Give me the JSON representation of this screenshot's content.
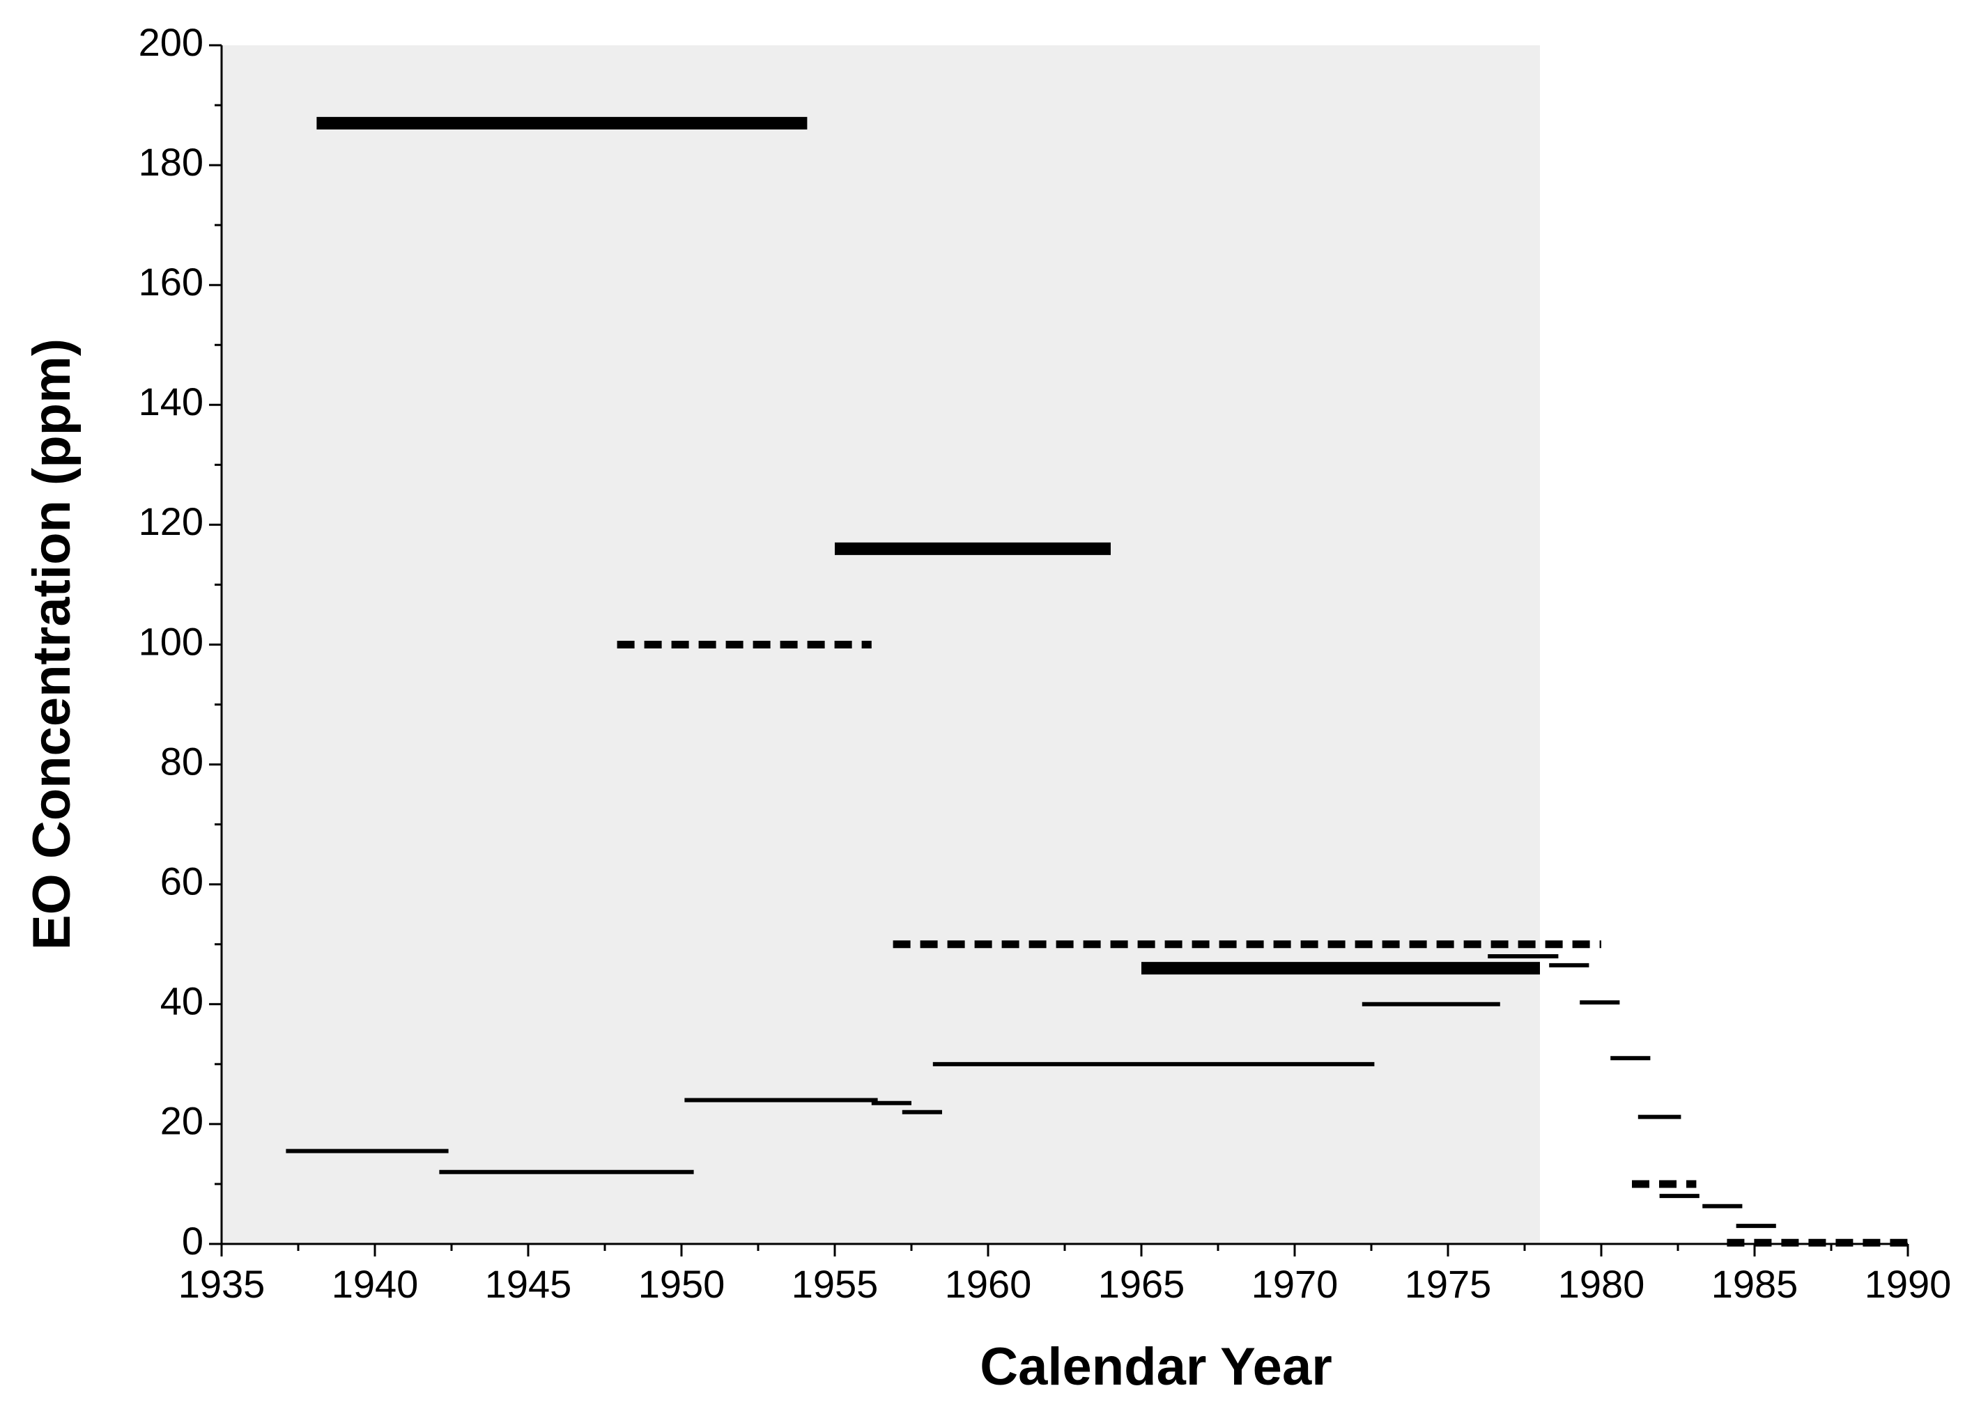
{
  "chart_data": {
    "type": "segments",
    "xlabel": "Calendar Year",
    "ylabel": "EO Concentration (ppm)",
    "xlim": [
      1935,
      1990
    ],
    "xticks": [
      1935,
      1940,
      1945,
      1950,
      1955,
      1960,
      1965,
      1970,
      1975,
      1980,
      1985,
      1990
    ],
    "xminorticks": [
      1937.5,
      1942.5,
      1947.5,
      1952.5,
      1957.5,
      1962.5,
      1967.5,
      1972.5,
      1977.5,
      1982.5,
      1987.5
    ],
    "ylim": [
      0,
      200
    ],
    "yticks": [
      0,
      20,
      40,
      60,
      80,
      100,
      120,
      140,
      160,
      180,
      200
    ],
    "yminorticks": [
      10,
      30,
      50,
      70,
      90,
      110,
      130,
      150,
      170,
      190
    ],
    "shade": {
      "xlim": [
        1935,
        1978
      ],
      "color": "#eeeeee"
    },
    "color": "#000000",
    "segments": [
      {
        "x": [
          1938.1,
          1954.1
        ],
        "y": 187,
        "style": "thick"
      },
      {
        "x": [
          1955.0,
          1964.0
        ],
        "y": 116,
        "style": "thick"
      },
      {
        "x": [
          1947.9,
          1956.2
        ],
        "y": 100,
        "style": "dashed"
      },
      {
        "x": [
          1956.9,
          1980.0
        ],
        "y": 50,
        "style": "dashed"
      },
      {
        "x": [
          1965.0,
          1978.0
        ],
        "y": 46,
        "style": "thick"
      },
      {
        "x": [
          1976.3,
          1978.6
        ],
        "y": 48,
        "style": "thin"
      },
      {
        "x": [
          1978.3,
          1979.6
        ],
        "y": 46.5,
        "style": "thin"
      },
      {
        "x": [
          1972.2,
          1976.7
        ],
        "y": 40,
        "style": "thin"
      },
      {
        "x": [
          1979.3,
          1980.6
        ],
        "y": 40.3,
        "style": "thin"
      },
      {
        "x": [
          1980.3,
          1981.6
        ],
        "y": 31,
        "style": "thin"
      },
      {
        "x": [
          1981.2,
          1982.6
        ],
        "y": 21.2,
        "style": "thin"
      },
      {
        "x": [
          1981.0,
          1983.1
        ],
        "y": 10,
        "style": "dashed"
      },
      {
        "x": [
          1981.9,
          1983.2
        ],
        "y": 8,
        "style": "thin"
      },
      {
        "x": [
          1983.3,
          1984.6
        ],
        "y": 6.3,
        "style": "thin"
      },
      {
        "x": [
          1984.4,
          1985.7
        ],
        "y": 3,
        "style": "thin"
      },
      {
        "x": [
          1984.1,
          1990.0
        ],
        "y": 0.2,
        "style": "dashed"
      },
      {
        "x": [
          1958.2,
          1972.6
        ],
        "y": 30,
        "style": "thin"
      },
      {
        "x": [
          1950.1,
          1956.4
        ],
        "y": 24,
        "style": "thin"
      },
      {
        "x": [
          1956.2,
          1957.5
        ],
        "y": 23.5,
        "style": "thin"
      },
      {
        "x": [
          1957.2,
          1958.5
        ],
        "y": 22,
        "style": "thin"
      },
      {
        "x": [
          1937.1,
          1942.4
        ],
        "y": 15.5,
        "style": "thin"
      },
      {
        "x": [
          1942.1,
          1950.4
        ],
        "y": 12,
        "style": "thin"
      }
    ]
  }
}
